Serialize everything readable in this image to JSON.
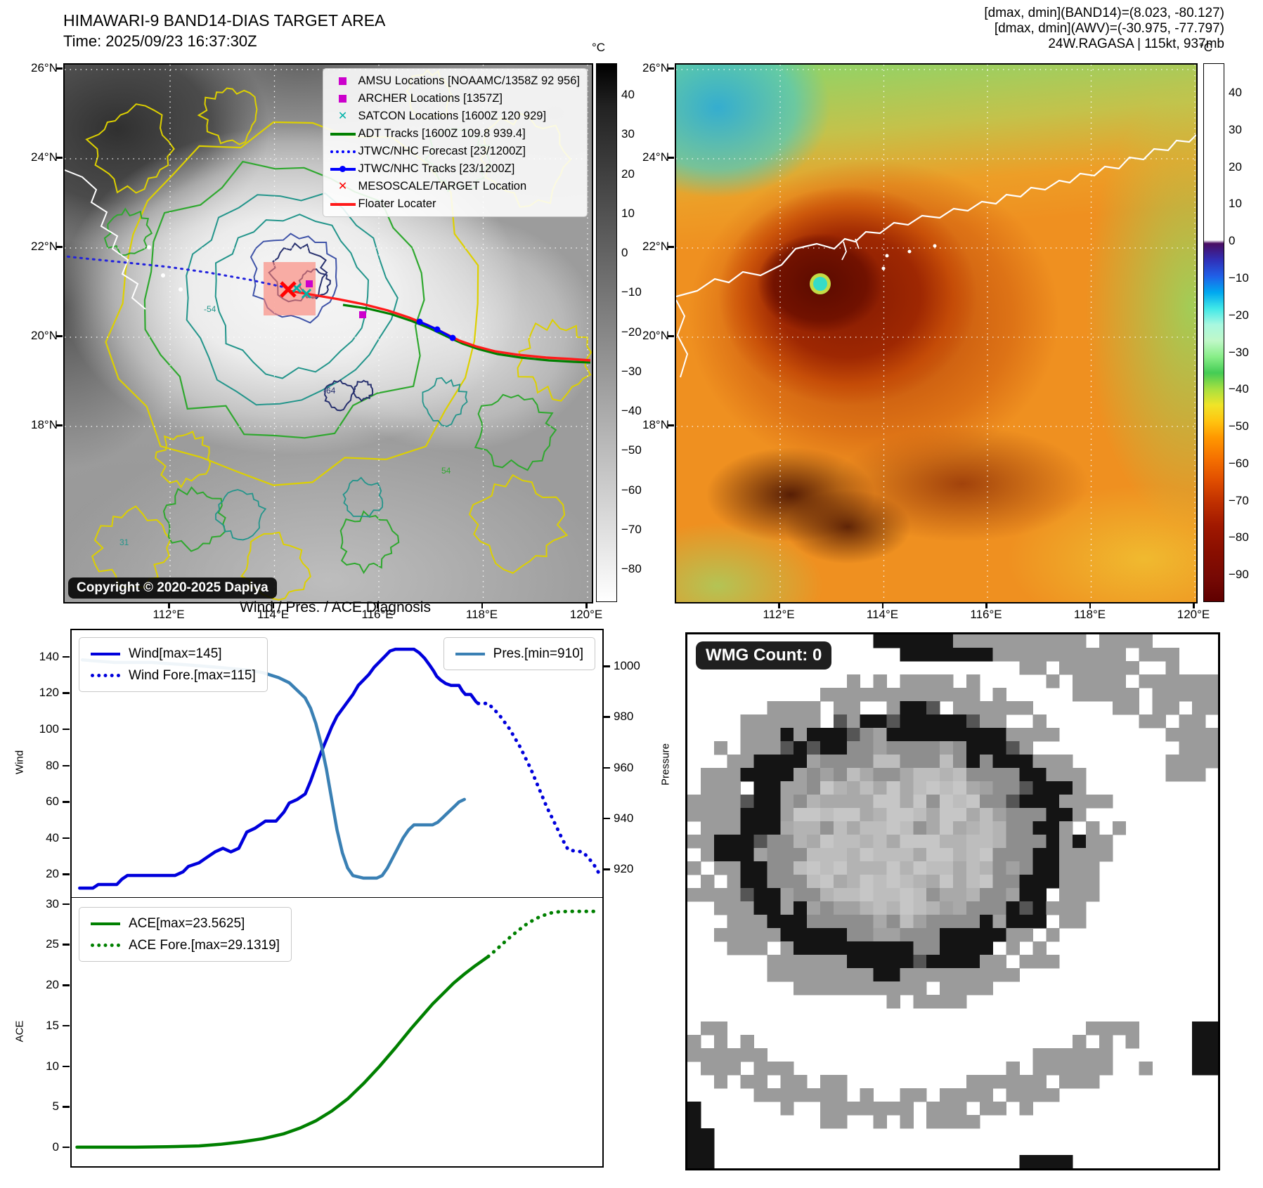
{
  "header_left": {
    "title": "HIMAWARI-9 BAND14-DIAS TARGET AREA",
    "time": "Time: 2025/09/23 16:37:30Z"
  },
  "header_right": {
    "line1": "[dmax, dmin](BAND14)=(8.023, -80.127)",
    "line2": "[dmax, dmin](AWV)=(-30.975, -77.797)",
    "line3": "24W.RAGASA | 115kt, 937mb"
  },
  "left_map": {
    "lat_labels": [
      "26°N",
      "24°N",
      "22°N",
      "20°N",
      "18°N"
    ],
    "lon_labels": [
      "112°E",
      "114°E",
      "116°E",
      "118°E",
      "120°E"
    ],
    "legend": [
      {
        "marker": "square",
        "color": "#cc00cc",
        "label": "AMSU Locations [NOAAMC/1358Z 92 956]"
      },
      {
        "marker": "square",
        "color": "#cc00cc",
        "label": "ARCHER Locations [1357Z]"
      },
      {
        "marker": "x",
        "color": "#00b2a8",
        "label": "SATCON Locations [1600Z 120 929]"
      },
      {
        "marker": "line",
        "color": "#008000",
        "label": "ADT Tracks [1600Z 109.8 939.4]"
      },
      {
        "marker": "dotted",
        "color": "#0000ff",
        "label": "JTWC/NHC Forecast [23/1200Z]"
      },
      {
        "marker": "linedot",
        "color": "#0000ff",
        "label": "JTWC/NHC Tracks [23/1200Z]"
      },
      {
        "marker": "x",
        "color": "#ff0000",
        "label": "MESOSCALE/TARGET Location"
      },
      {
        "marker": "line",
        "color": "#ff1a1a",
        "label": "Floater Locater"
      }
    ],
    "copyright": "Copyright © 2020-2025 Dapiya",
    "contour_labels": [
      "-54",
      "-64",
      "54",
      "31"
    ],
    "colorbar": {
      "unit": "°C",
      "ticks": [
        40,
        30,
        20,
        10,
        0,
        -10,
        -20,
        -30,
        -40,
        -50,
        -60,
        -70,
        -80
      ]
    }
  },
  "right_map": {
    "lat_labels": [
      "26°N",
      "24°N",
      "22°N",
      "20°N",
      "18°N"
    ],
    "lon_labels": [
      "112°E",
      "114°E",
      "116°E",
      "118°E",
      "120°E"
    ],
    "colorbar": {
      "unit": "°C",
      "ticks": [
        40,
        30,
        20,
        10,
        0,
        -10,
        -20,
        -30,
        -40,
        -50,
        -60,
        -70,
        -80,
        -90
      ]
    }
  },
  "wmg": {
    "count_label": "WMG Count: 0"
  },
  "chart_data": [
    {
      "type": "line",
      "title": "Wind / Pres. / ACE Diagnosis",
      "ylabel": "Wind",
      "y2label": "Pressure",
      "ylim": [
        8,
        155.5
      ],
      "y2lim": [
        909.5,
        1014.7
      ],
      "yticks": [
        20,
        40,
        60,
        80,
        100,
        120,
        140
      ],
      "y2ticks": [
        920,
        940,
        960,
        980,
        1000
      ],
      "grid": false,
      "legend_positions": [
        "upper left",
        "upper right"
      ],
      "series": [
        {
          "name": "Wind[max=145]",
          "axis": "left",
          "style": "solid",
          "color": "#0000dc",
          "points": [
            [
              1.5,
              13
            ],
            [
              4,
              13
            ],
            [
              5,
              15
            ],
            [
              8.5,
              15
            ],
            [
              9.5,
              18
            ],
            [
              10.5,
              20
            ],
            [
              19.5,
              20
            ],
            [
              21,
              22
            ],
            [
              22,
              25
            ],
            [
              24,
              27
            ],
            [
              25.5,
              30
            ],
            [
              27,
              33
            ],
            [
              28.5,
              35
            ],
            [
              30,
              33
            ],
            [
              31.5,
              35
            ],
            [
              33,
              44
            ],
            [
              34.5,
              46
            ],
            [
              36.5,
              50
            ],
            [
              38.5,
              50
            ],
            [
              40,
              55
            ],
            [
              41,
              60
            ],
            [
              42.5,
              62
            ],
            [
              44,
              65
            ],
            [
              45,
              72
            ],
            [
              46,
              80
            ],
            [
              47,
              88
            ],
            [
              48,
              95
            ],
            [
              49,
              102
            ],
            [
              50,
              108
            ],
            [
              51,
              112
            ],
            [
              52,
              116
            ],
            [
              53,
              120
            ],
            [
              54,
              125
            ],
            [
              55,
              128
            ],
            [
              56,
              131
            ],
            [
              57,
              135
            ],
            [
              58,
              138
            ],
            [
              59,
              141
            ],
            [
              60,
              144
            ],
            [
              61,
              145
            ],
            [
              64.5,
              145
            ],
            [
              65.5,
              143
            ],
            [
              66.5,
              140
            ],
            [
              67.5,
              136
            ],
            [
              68.2,
              133
            ],
            [
              68.8,
              130
            ],
            [
              69.5,
              128
            ],
            [
              70.5,
              126
            ],
            [
              71.5,
              125
            ],
            [
              73,
              125
            ],
            [
              73.6,
              122
            ],
            [
              74.2,
              120
            ],
            [
              75.2,
              120
            ],
            [
              75.7,
              118
            ],
            [
              76.2,
              116
            ],
            [
              76.6,
              115
            ]
          ]
        },
        {
          "name": "Wind Fore.[max=115]",
          "axis": "left",
          "style": "dotted",
          "color": "#0000dc",
          "points": [
            [
              76.6,
              115
            ],
            [
              78.5,
              115
            ],
            [
              79.5,
              112
            ],
            [
              80.5,
              109
            ],
            [
              81.5,
              105
            ],
            [
              82.5,
              101
            ],
            [
              83.5,
              96
            ],
            [
              84.5,
              91
            ],
            [
              85.5,
              85
            ],
            [
              86.5,
              79
            ],
            [
              87.5,
              72
            ],
            [
              88.5,
              65
            ],
            [
              89.5,
              58
            ],
            [
              90.5,
              52
            ],
            [
              91.5,
              46
            ],
            [
              92.3,
              41
            ],
            [
              93,
              37
            ],
            [
              93.6,
              34
            ],
            [
              96.3,
              33
            ],
            [
              97.3,
              30
            ],
            [
              98.4,
              26
            ],
            [
              99.4,
              21
            ]
          ]
        },
        {
          "name": "Pres.[min=910]",
          "axis": "right",
          "style": "solid",
          "color": "#3a80b4",
          "points": [
            [
              2,
              1003
            ],
            [
              8,
              1002
            ],
            [
              15,
              1002
            ],
            [
              22,
              1001
            ],
            [
              28,
              1000
            ],
            [
              33,
              999
            ],
            [
              36,
              998
            ],
            [
              39,
              996
            ],
            [
              41,
              994
            ],
            [
              42.5,
              991
            ],
            [
              44,
              988
            ],
            [
              45,
              984
            ],
            [
              46,
              978
            ],
            [
              47,
              970
            ],
            [
              48,
              960
            ],
            [
              49,
              948
            ],
            [
              50,
              936
            ],
            [
              51,
              927
            ],
            [
              52,
              921
            ],
            [
              53,
              918
            ],
            [
              55,
              917
            ],
            [
              57.5,
              917
            ],
            [
              58.5,
              918
            ],
            [
              59.5,
              921
            ],
            [
              60.5,
              925
            ],
            [
              61.5,
              929
            ],
            [
              62.5,
              933
            ],
            [
              63.5,
              936
            ],
            [
              64.5,
              938
            ],
            [
              68,
              938
            ],
            [
              69,
              939
            ],
            [
              70,
              941
            ],
            [
              71,
              943
            ],
            [
              72,
              945
            ],
            [
              73,
              947
            ],
            [
              74,
              948
            ]
          ]
        }
      ]
    },
    {
      "type": "line",
      "ylabel": "ACE",
      "ylim": [
        -2.3,
        30.8
      ],
      "yticks": [
        0,
        5,
        10,
        15,
        20,
        25,
        30
      ],
      "grid": false,
      "series": [
        {
          "name": "ACE[max=23.5625]",
          "style": "solid",
          "color": "#008000",
          "points": [
            [
              1,
              0.05
            ],
            [
              12,
              0.05
            ],
            [
              18,
              0.1
            ],
            [
              24,
              0.2
            ],
            [
              28,
              0.4
            ],
            [
              32,
              0.7
            ],
            [
              36,
              1.1
            ],
            [
              40,
              1.7
            ],
            [
              43,
              2.4
            ],
            [
              46,
              3.3
            ],
            [
              49,
              4.5
            ],
            [
              52,
              6
            ],
            [
              55,
              7.9
            ],
            [
              58,
              10
            ],
            [
              61,
              12.3
            ],
            [
              64,
              14.7
            ],
            [
              66,
              16.2
            ],
            [
              68,
              17.7
            ],
            [
              70,
              19
            ],
            [
              72,
              20.3
            ],
            [
              74,
              21.4
            ],
            [
              76,
              22.4
            ],
            [
              77.5,
              23.1
            ],
            [
              78.5,
              23.5625
            ]
          ]
        },
        {
          "name": "ACE Fore.[max=29.1319]",
          "style": "dotted",
          "color": "#008000",
          "points": [
            [
              78.5,
              23.5625
            ],
            [
              80,
              24.4
            ],
            [
              82,
              25.6
            ],
            [
              84,
              26.7
            ],
            [
              86,
              27.7
            ],
            [
              88,
              28.4
            ],
            [
              90,
              28.9
            ],
            [
              92,
              29.1
            ],
            [
              94,
              29.13
            ],
            [
              99.5,
              29.13
            ]
          ]
        }
      ]
    }
  ]
}
